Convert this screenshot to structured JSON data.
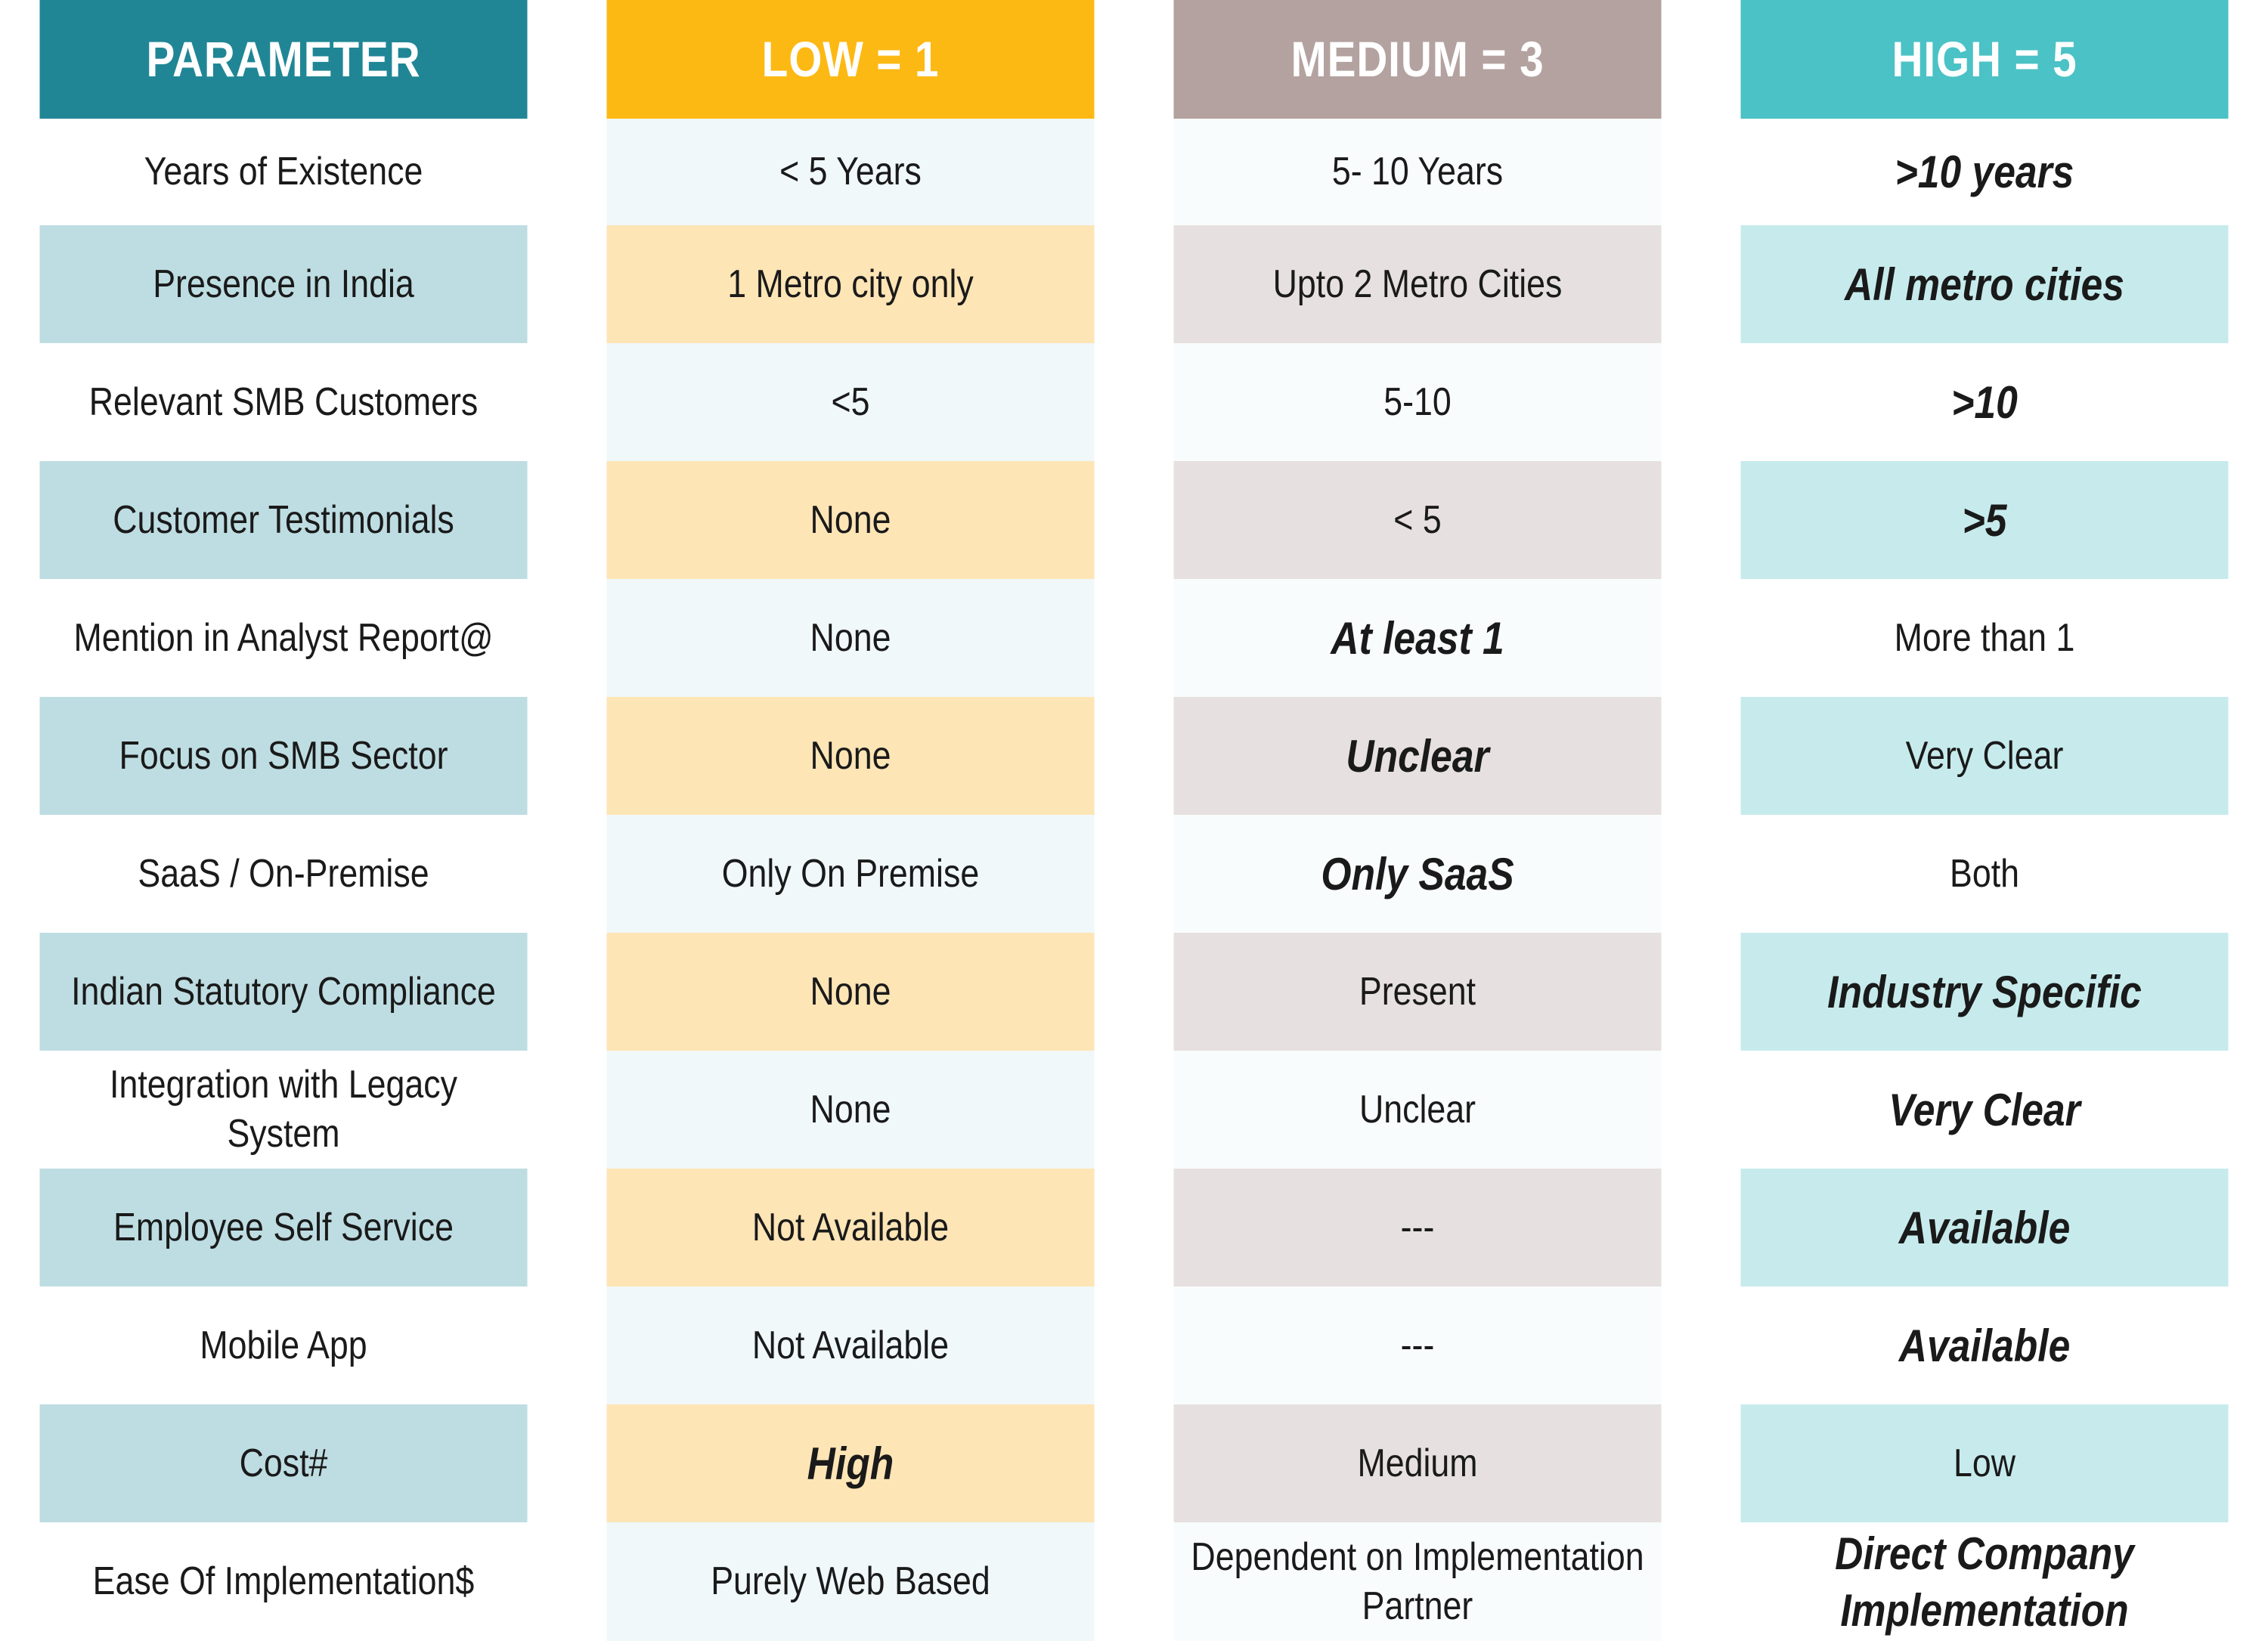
{
  "colors": {
    "header": [
      "#208695",
      "#fdb913",
      "#b3a29f",
      "#4bc2c5"
    ],
    "band_a": [
      "#ffffff",
      "#f0f8fa",
      "#f9fcfd",
      "#ffffff"
    ],
    "band_b": [
      "#bedde2",
      "#fee5b6",
      "#e7e0e0",
      "#c7ebec"
    ]
  },
  "headers": [
    "PARAMETER",
    "LOW = 1",
    "MEDIUM = 3",
    "HIGH = 5"
  ],
  "rows": [
    {
      "cells": [
        "Years of Existence",
        "< 5 Years",
        "5- 10 Years",
        ">10 years"
      ],
      "emphasis": [
        false,
        false,
        false,
        true
      ]
    },
    {
      "cells": [
        "Presence in India",
        "1 Metro city only",
        "Upto 2 Metro Cities",
        "All metro cities"
      ],
      "emphasis": [
        false,
        false,
        false,
        true
      ]
    },
    {
      "cells": [
        "Relevant SMB Customers",
        "<5",
        "5-10",
        ">10"
      ],
      "emphasis": [
        false,
        false,
        false,
        true
      ]
    },
    {
      "cells": [
        "Customer Testimonials",
        "None",
        "< 5",
        ">5"
      ],
      "emphasis": [
        false,
        false,
        false,
        true
      ]
    },
    {
      "cells": [
        "Mention in Analyst Report@",
        "None",
        "At least 1",
        "More than 1"
      ],
      "emphasis": [
        false,
        false,
        true,
        false
      ]
    },
    {
      "cells": [
        "Focus on SMB Sector",
        "None",
        "Unclear",
        "Very Clear"
      ],
      "emphasis": [
        false,
        false,
        true,
        false
      ]
    },
    {
      "cells": [
        "SaaS / On-Premise",
        "Only On Premise",
        "Only SaaS",
        "Both"
      ],
      "emphasis": [
        false,
        false,
        true,
        false
      ]
    },
    {
      "cells": [
        "Indian Statutory Compliance",
        "None",
        "Present",
        "Industry Specific"
      ],
      "emphasis": [
        false,
        false,
        false,
        true
      ]
    },
    {
      "cells": [
        "Integration with Legacy System",
        "None",
        "Unclear",
        "Very Clear"
      ],
      "emphasis": [
        false,
        false,
        false,
        true
      ]
    },
    {
      "cells": [
        "Employee Self Service",
        "Not Available",
        "---",
        "Available"
      ],
      "emphasis": [
        false,
        false,
        false,
        true
      ]
    },
    {
      "cells": [
        "Mobile App",
        "Not Available",
        "---",
        "Available"
      ],
      "emphasis": [
        false,
        false,
        false,
        true
      ]
    },
    {
      "cells": [
        "Cost#",
        "High",
        "Medium",
        "Low"
      ],
      "emphasis": [
        false,
        true,
        false,
        false
      ]
    },
    {
      "cells": [
        "Ease Of Implementation$",
        "Purely Web Based",
        "Dependent on Implementation Partner",
        "Direct Company Implementation"
      ],
      "emphasis": [
        false,
        false,
        false,
        true
      ]
    }
  ]
}
